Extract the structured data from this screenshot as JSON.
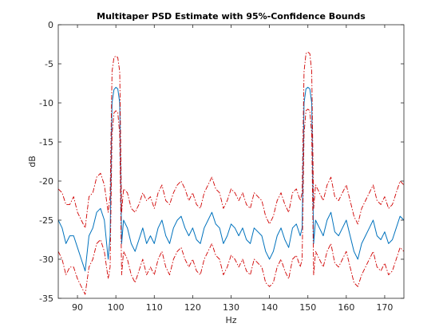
{
  "chart_data": {
    "type": "line",
    "title": "Multitaper PSD Estimate with 95%-Confidence Bounds",
    "xlabel": "Hz",
    "ylabel": "dB",
    "xlim": [
      85,
      175
    ],
    "ylim": [
      -35,
      0
    ],
    "grid": false,
    "xticks": [
      90,
      100,
      110,
      120,
      130,
      140,
      150,
      160,
      170
    ],
    "yticks": [
      0,
      -5,
      -10,
      -15,
      -20,
      -25,
      -30,
      -35
    ],
    "colors": {
      "estimate": "#0072BD",
      "bounds": "#D00000"
    },
    "series": [
      {
        "role": "estimate",
        "x": [
          85,
          86,
          87,
          88,
          89,
          90,
          91,
          92,
          93,
          94,
          95,
          96,
          97,
          98,
          98.5,
          99,
          99.5,
          100,
          100.5,
          101,
          101.5,
          102,
          103,
          104,
          105,
          106,
          107,
          108,
          109,
          110,
          111,
          112,
          113,
          114,
          115,
          116,
          117,
          118,
          119,
          120,
          121,
          122,
          123,
          124,
          125,
          126,
          127,
          128,
          129,
          130,
          131,
          132,
          133,
          134,
          135,
          136,
          137,
          138,
          139,
          140,
          141,
          142,
          143,
          144,
          145,
          146,
          147,
          148,
          148.5,
          149,
          149.5,
          150,
          150.5,
          151,
          151.5,
          152,
          153,
          154,
          155,
          156,
          157,
          158,
          159,
          160,
          161,
          162,
          163,
          164,
          165,
          166,
          167,
          168,
          169,
          170,
          171,
          172,
          173,
          174,
          175
        ],
        "y": [
          -25,
          -26,
          -28,
          -27,
          -27,
          -28.5,
          -30,
          -31.5,
          -27,
          -26,
          -24,
          -23.5,
          -25,
          -30,
          -27,
          -10,
          -8.3,
          -8,
          -8.2,
          -10,
          -28,
          -25,
          -26,
          -28,
          -29,
          -27.5,
          -26,
          -28,
          -27,
          -28,
          -26,
          -25,
          -27,
          -28,
          -26,
          -25,
          -24.5,
          -26,
          -27,
          -26,
          -27.5,
          -28,
          -26,
          -25,
          -24,
          -25.5,
          -26,
          -28,
          -27,
          -25.5,
          -26,
          -27,
          -26,
          -27.5,
          -28,
          -26,
          -26.5,
          -27,
          -29,
          -30,
          -29,
          -27,
          -26,
          -27.5,
          -28.5,
          -26,
          -25.5,
          -27,
          -26,
          -10,
          -8.2,
          -8,
          -8.2,
          -10,
          -28,
          -25,
          -26,
          -27,
          -25,
          -24,
          -26.5,
          -27,
          -26,
          -25,
          -27,
          -29,
          -30,
          -28,
          -27,
          -26,
          -25,
          -27,
          -27.5,
          -26.5,
          -28,
          -27.5,
          -26,
          -24.5,
          -25
        ]
      },
      {
        "role": "upper-bound",
        "x": [
          85,
          86,
          87,
          88,
          89,
          90,
          91,
          92,
          93,
          94,
          95,
          96,
          97,
          98,
          98.5,
          99,
          99.5,
          100,
          100.5,
          101,
          101.5,
          102,
          103,
          104,
          105,
          106,
          107,
          108,
          109,
          110,
          111,
          112,
          113,
          114,
          115,
          116,
          117,
          118,
          119,
          120,
          121,
          122,
          123,
          124,
          125,
          126,
          127,
          128,
          129,
          130,
          131,
          132,
          133,
          134,
          135,
          136,
          137,
          138,
          139,
          140,
          141,
          142,
          143,
          144,
          145,
          146,
          147,
          148,
          148.5,
          149,
          149.5,
          150,
          150.5,
          151,
          151.5,
          152,
          153,
          154,
          155,
          156,
          157,
          158,
          159,
          160,
          161,
          162,
          163,
          164,
          165,
          166,
          167,
          168,
          169,
          170,
          171,
          172,
          173,
          174,
          175
        ],
        "y": [
          -21,
          -21.5,
          -23,
          -23,
          -22,
          -24,
          -25,
          -26,
          -22,
          -21.5,
          -19.5,
          -19,
          -20.5,
          -24,
          -22,
          -6,
          -4.2,
          -4,
          -4.2,
          -6,
          -24,
          -21,
          -21.5,
          -23.5,
          -24,
          -23,
          -21.5,
          -22.5,
          -22,
          -23.5,
          -21.5,
          -20.5,
          -22.5,
          -23,
          -21.5,
          -20.5,
          -20,
          -21,
          -22.5,
          -21.5,
          -23,
          -23.5,
          -21.5,
          -20.5,
          -19.5,
          -21,
          -21.5,
          -23.5,
          -22.5,
          -21,
          -21.5,
          -22.5,
          -21.5,
          -23,
          -23.5,
          -21.5,
          -22,
          -22.5,
          -24.5,
          -25.5,
          -24.5,
          -22.5,
          -21.5,
          -23,
          -24,
          -21.5,
          -21,
          -22.5,
          -21.5,
          -6,
          -3.7,
          -3.5,
          -3.7,
          -6,
          -23.5,
          -20.5,
          -21.5,
          -22.5,
          -20.5,
          -19.5,
          -22,
          -22.5,
          -21.5,
          -20.5,
          -22.5,
          -24.5,
          -25.5,
          -23.5,
          -22.5,
          -21.5,
          -20.5,
          -22.5,
          -23,
          -22,
          -23.5,
          -23,
          -21.5,
          -20,
          -20.5
        ]
      },
      {
        "role": "lower-bound",
        "x": [
          85,
          86,
          87,
          88,
          89,
          90,
          91,
          92,
          93,
          94,
          95,
          96,
          97,
          98,
          98.5,
          99,
          99.5,
          100,
          100.5,
          101,
          101.5,
          102,
          103,
          104,
          105,
          106,
          107,
          108,
          109,
          110,
          111,
          112,
          113,
          114,
          115,
          116,
          117,
          118,
          119,
          120,
          121,
          122,
          123,
          124,
          125,
          126,
          127,
          128,
          129,
          130,
          131,
          132,
          133,
          134,
          135,
          136,
          137,
          138,
          139,
          140,
          141,
          142,
          143,
          144,
          145,
          146,
          147,
          148,
          148.5,
          149,
          149.5,
          150,
          150.5,
          151,
          151.5,
          152,
          153,
          154,
          155,
          156,
          157,
          158,
          159,
          160,
          161,
          162,
          163,
          164,
          165,
          166,
          167,
          168,
          169,
          170,
          171,
          172,
          173,
          174,
          175
        ],
        "y": [
          -29,
          -30,
          -32,
          -31,
          -31,
          -32.5,
          -33.5,
          -34.5,
          -31,
          -30,
          -28,
          -27.5,
          -29,
          -32.5,
          -31,
          -14,
          -11.3,
          -11,
          -11.2,
          -14,
          -32,
          -29,
          -30,
          -32,
          -33,
          -31.5,
          -30,
          -32,
          -31,
          -32,
          -30,
          -29,
          -31,
          -32,
          -30,
          -29,
          -28.5,
          -30,
          -31,
          -30,
          -31.5,
          -32,
          -30,
          -29,
          -28,
          -29.5,
          -30,
          -32,
          -31,
          -29.5,
          -30,
          -31,
          -30,
          -31.5,
          -32,
          -30,
          -30.5,
          -31,
          -33,
          -33.5,
          -33,
          -31,
          -30,
          -31.5,
          -32.5,
          -30,
          -29.5,
          -31,
          -30,
          -14,
          -11,
          -10.8,
          -11,
          -14,
          -32,
          -29,
          -30,
          -31,
          -29,
          -28,
          -30.5,
          -31,
          -30,
          -29,
          -31,
          -33,
          -33.5,
          -32,
          -31,
          -30,
          -29,
          -31,
          -31.5,
          -30.5,
          -32,
          -31.5,
          -30,
          -28.5,
          -29
        ]
      }
    ]
  }
}
